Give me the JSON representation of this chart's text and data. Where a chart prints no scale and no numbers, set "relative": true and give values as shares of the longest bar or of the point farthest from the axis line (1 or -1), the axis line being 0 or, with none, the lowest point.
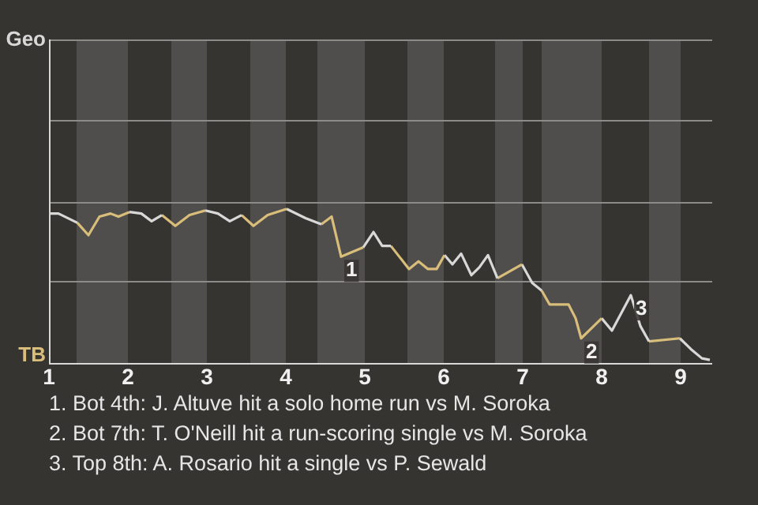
{
  "chart_data": {
    "type": "line",
    "relative": true,
    "series": [
      {
        "color": "#d8d8d8",
        "x": [
          1.0,
          1.12,
          1.36
        ],
        "values": [
          0.97,
          0.97,
          0.91
        ]
      },
      {
        "color": "#d9bd7a",
        "x": [
          1.36,
          1.5,
          1.64,
          1.78,
          1.88,
          2.02
        ],
        "values": [
          0.91,
          0.83,
          0.95,
          0.97,
          0.95,
          0.98
        ]
      },
      {
        "color": "#d8d8d8",
        "x": [
          2.02,
          2.17,
          2.3,
          2.43
        ],
        "values": [
          0.98,
          0.97,
          0.92,
          0.96
        ]
      },
      {
        "color": "#d9bd7a",
        "x": [
          2.43,
          2.6,
          2.78,
          2.98
        ],
        "values": [
          0.96,
          0.89,
          0.96,
          0.99
        ]
      },
      {
        "color": "#d8d8d8",
        "x": [
          2.98,
          3.14,
          3.29,
          3.44
        ],
        "values": [
          0.99,
          0.97,
          0.92,
          0.96
        ]
      },
      {
        "color": "#d9bd7a",
        "x": [
          3.44,
          3.59,
          3.77,
          4.01
        ],
        "values": [
          0.96,
          0.89,
          0.96,
          1
        ]
      },
      {
        "color": "#d8d8d8",
        "x": [
          4.01,
          4.25,
          4.45
        ],
        "values": [
          1,
          0.94,
          0.9
        ]
      },
      {
        "color": "#d9bd7a",
        "x": [
          4.45,
          4.58,
          4.7,
          4.98
        ],
        "values": [
          0.9,
          0.95,
          0.69,
          0.75
        ]
      },
      {
        "color": "#d8d8d8",
        "x": [
          4.98,
          5.11,
          5.22,
          5.33
        ],
        "values": [
          0.75,
          0.85,
          0.76,
          0.76
        ]
      },
      {
        "color": "#d9bd7a",
        "x": [
          5.33,
          5.56,
          5.68,
          5.8,
          5.91,
          6.01
        ],
        "values": [
          0.76,
          0.61,
          0.66,
          0.61,
          0.61,
          0.7
        ]
      },
      {
        "color": "#d8d8d8",
        "x": [
          6.01,
          6.11,
          6.22,
          6.35,
          6.45,
          6.56,
          6.68
        ],
        "values": [
          0.7,
          0.64,
          0.71,
          0.57,
          0.62,
          0.7,
          0.55
        ]
      },
      {
        "color": "#d9bd7a",
        "x": [
          6.68,
          6.99
        ],
        "values": [
          0.55,
          0.64
        ]
      },
      {
        "color": "#d8d8d8",
        "x": [
          6.99,
          7.12,
          7.24
        ],
        "values": [
          0.64,
          0.52,
          0.47
        ]
      },
      {
        "color": "#d9bd7a",
        "x": [
          7.24,
          7.34,
          7.58,
          7.67,
          7.74,
          7.88,
          8.0
        ],
        "values": [
          0.47,
          0.38,
          0.38,
          0.29,
          0.16,
          0.23,
          0.29
        ]
      },
      {
        "color": "#d8d8d8",
        "x": [
          8.0,
          8.13,
          8.37,
          8.49,
          8.6
        ],
        "values": [
          0.29,
          0.21,
          0.44,
          0.24,
          0.14
        ]
      },
      {
        "color": "#d9bd7a",
        "x": [
          8.6,
          8.99
        ],
        "values": [
          0.14,
          0.16
        ]
      },
      {
        "color": "#d8d8d8",
        "x": [
          8.99,
          9.13,
          9.27,
          9.37
        ],
        "values": [
          0.16,
          0.09,
          0.03,
          0.02
        ]
      }
    ],
    "xlim": [
      1,
      9.4
    ],
    "xticks": [
      1,
      2,
      3,
      4,
      5,
      6,
      7,
      8,
      9
    ],
    "tick_labels": "x",
    "ref_lines": [
      {
        "axis": "y",
        "value": 0.53,
        "color": "#8c8b88"
      },
      {
        "axis": "y",
        "value": 1.05,
        "color": "#8c8b88"
      },
      {
        "axis": "y",
        "value": 1.58,
        "color": "#8c8b88"
      },
      {
        "axis": "y",
        "value": 2.1,
        "color": "#8c8b88"
      }
    ],
    "marker": "none",
    "line_style": "solid",
    "bands": [
      {
        "axis": "x",
        "from": 1.35,
        "to": 2,
        "color": "#4f4e4c"
      },
      {
        "axis": "x",
        "from": 2.55,
        "to": 3,
        "color": "#4f4e4c"
      },
      {
        "axis": "x",
        "from": 3.55,
        "to": 4,
        "color": "#4f4e4c"
      },
      {
        "axis": "x",
        "from": 4.4,
        "to": 5,
        "color": "#4f4e4c"
      },
      {
        "axis": "x",
        "from": 5.54,
        "to": 6,
        "color": "#4f4e4c"
      },
      {
        "axis": "x",
        "from": 6.65,
        "to": 7,
        "color": "#4f4e4c"
      },
      {
        "axis": "x",
        "from": 7.24,
        "to": 8,
        "color": "#4f4e4c"
      },
      {
        "axis": "x",
        "from": 8.6,
        "to": 9,
        "color": "#4f4e4c"
      }
    ],
    "annotations": [
      "Geo",
      "TB",
      {
        "text": "1",
        "x": 4.7,
        "y": 0.69
      },
      {
        "text": "2",
        "x": 7.74,
        "y": 0.16
      },
      {
        "text": "3",
        "x": 8.37,
        "y": 0.44
      },
      "1. Bot 4th: J. Altuve hit a solo home run vs M. Soroka",
      "2. Bot 7th: T. O'Neill hit a run-scoring single vs M. Soroka",
      "3. Top 8th: A. Rosario hit a single vs P. Sewald"
    ]
  }
}
